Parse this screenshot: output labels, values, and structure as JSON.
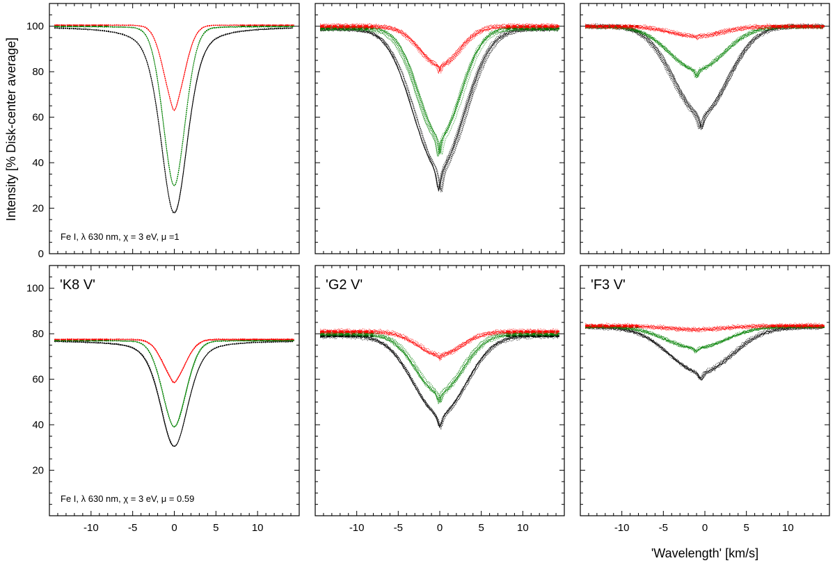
{
  "chart_data": [
    {
      "type": "line",
      "panel": "top-left",
      "xlim": [
        -15,
        15
      ],
      "ylim": [
        0,
        110
      ],
      "xticks": [],
      "yticks": [
        0,
        20,
        40,
        60,
        80,
        100
      ],
      "ylabel": "Intensity [% Disk-center average]",
      "xlabel": "",
      "label": "",
      "annotation": "Fe I, λ 630 nm, χ = 3 eV, μ =1",
      "scatter": 0.5,
      "series": [
        {
          "name": "black",
          "color": "#000000",
          "continuum": 100,
          "depth": 82,
          "center": 0,
          "sigma": 1.6,
          "gamma": 2.0
        },
        {
          "name": "green",
          "color": "#008000",
          "continuum": 100,
          "depth": 70,
          "center": 0,
          "sigma": 1.4,
          "gamma": 1.0
        },
        {
          "name": "red",
          "color": "#ff0000",
          "continuum": 100.5,
          "depth": 37.5,
          "center": 0,
          "sigma": 1.3,
          "gamma": 0.5
        }
      ]
    },
    {
      "type": "line",
      "panel": "top-middle",
      "xlim": [
        -15,
        15
      ],
      "ylim": [
        0,
        110
      ],
      "xticks": [],
      "yticks": [],
      "xlabel": "",
      "ylabel": "",
      "label": "",
      "annotation": "",
      "scatter": 2.0,
      "series": [
        {
          "name": "black",
          "color": "#000000",
          "continuum": 99,
          "depth": 71,
          "center": 0,
          "sigma": 3.1,
          "gamma": 0.3
        },
        {
          "name": "green",
          "color": "#008000",
          "continuum": 99,
          "depth": 56,
          "center": 0,
          "sigma": 2.6,
          "gamma": 0.2
        },
        {
          "name": "red",
          "color": "#ff0000",
          "continuum": 100,
          "depth": 20,
          "center": 0,
          "sigma": 2.4,
          "gamma": 0.1
        }
      ]
    },
    {
      "type": "line",
      "panel": "top-right",
      "xlim": [
        -15,
        15
      ],
      "ylim": [
        0,
        110
      ],
      "xticks": [],
      "yticks": [],
      "xlabel": "",
      "ylabel": "",
      "label": "",
      "annotation": "",
      "scatter": 2.0,
      "series": [
        {
          "name": "black",
          "color": "#000000",
          "continuum": 100,
          "depth": 45,
          "center": -0.5,
          "sigma": 3.3,
          "gamma": 0.3
        },
        {
          "name": "green",
          "color": "#008000",
          "continuum": 100,
          "depth": 22,
          "center": -1,
          "sigma": 3.3,
          "gamma": 0.2
        },
        {
          "name": "red",
          "color": "#ff0000",
          "continuum": 100,
          "depth": 5,
          "center": -1,
          "sigma": 3.0,
          "gamma": 0.1
        }
      ]
    },
    {
      "type": "line",
      "panel": "bottom-left",
      "xlim": [
        -15,
        15
      ],
      "ylim": [
        0,
        110
      ],
      "xticks": [
        -10,
        -5,
        0,
        5,
        10
      ],
      "yticks": [
        20,
        40,
        60,
        80,
        100
      ],
      "xlabel": "",
      "ylabel": "",
      "label": "'K8 V'",
      "annotation": "Fe I, λ 630 nm, χ = 3 eV, μ = 0.59",
      "scatter": 0.5,
      "series": [
        {
          "name": "black",
          "color": "#000000",
          "continuum": 77,
          "depth": 46.5,
          "center": 0,
          "sigma": 1.7,
          "gamma": 2.0
        },
        {
          "name": "green",
          "color": "#008000",
          "continuum": 77,
          "depth": 38,
          "center": 0,
          "sigma": 1.5,
          "gamma": 1.0
        },
        {
          "name": "red",
          "color": "#ff0000",
          "continuum": 77.5,
          "depth": 19,
          "center": 0,
          "sigma": 1.4,
          "gamma": 0.5
        }
      ]
    },
    {
      "type": "line",
      "panel": "bottom-middle",
      "xlim": [
        -15,
        15
      ],
      "ylim": [
        0,
        110
      ],
      "xticks": [
        -10,
        -5,
        0,
        5,
        10
      ],
      "yticks": [],
      "xlabel": "",
      "ylabel": "",
      "label": "'G2 V'",
      "annotation": "",
      "scatter": 2.0,
      "series": [
        {
          "name": "black",
          "color": "#000000",
          "continuum": 79,
          "depth": 40,
          "center": 0,
          "sigma": 3.2,
          "gamma": 0.3
        },
        {
          "name": "green",
          "color": "#008000",
          "continuum": 80,
          "depth": 30,
          "center": 0,
          "sigma": 2.8,
          "gamma": 0.2
        },
        {
          "name": "red",
          "color": "#ff0000",
          "continuum": 81,
          "depth": 12,
          "center": 0,
          "sigma": 2.6,
          "gamma": 0.1
        }
      ]
    },
    {
      "type": "line",
      "panel": "bottom-right",
      "xlim": [
        -15,
        15
      ],
      "ylim": [
        0,
        110
      ],
      "xticks": [
        -10,
        -5,
        0,
        5,
        10
      ],
      "yticks": [],
      "xlabel": "'Wavelength'  [km/s]",
      "ylabel": "",
      "label": "'F3 V'",
      "annotation": "",
      "scatter": 2.0,
      "series": [
        {
          "name": "black",
          "color": "#000000",
          "continuum": 83,
          "depth": 23,
          "center": -0.5,
          "sigma": 3.8,
          "gamma": 0.3
        },
        {
          "name": "green",
          "color": "#008000",
          "continuum": 83,
          "depth": 11,
          "center": -1,
          "sigma": 3.6,
          "gamma": 0.2
        },
        {
          "name": "red",
          "color": "#ff0000",
          "continuum": 83.5,
          "depth": 2,
          "center": -1,
          "sigma": 3.5,
          "gamma": 0.1
        }
      ]
    }
  ]
}
